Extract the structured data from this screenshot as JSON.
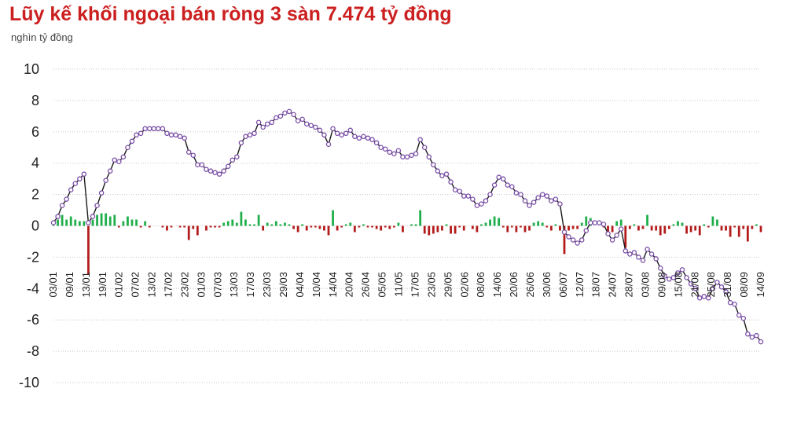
{
  "chart_data": {
    "type": "bar+line",
    "title": "Lũy kế khối ngoại bán ròng 3 sàn 7.474 tỷ đồng",
    "unit": "nghìn tỷ đồng",
    "ylim": [
      -10,
      10
    ],
    "yticks": [
      10,
      8,
      6,
      4,
      2,
      0,
      -2,
      -4,
      -6,
      -8,
      -10
    ],
    "grid": true,
    "legend": "none",
    "x_labels": [
      "03/01",
      "09/01",
      "13/01",
      "19/01",
      "01/02",
      "07/02",
      "13/02",
      "17/02",
      "23/02",
      "01/03",
      "07/03",
      "13/03",
      "17/03",
      "23/03",
      "29/03",
      "04/04",
      "10/04",
      "14/04",
      "20/04",
      "26/04",
      "05/05",
      "11/05",
      "17/05",
      "23/05",
      "29/05",
      "02/06",
      "08/06",
      "14/06",
      "20/06",
      "26/06",
      "30/06",
      "06/07",
      "12/07",
      "18/07",
      "24/07",
      "28/07",
      "03/08",
      "09/08",
      "15/08",
      "21/08",
      "25/08",
      "31/08",
      "08/09",
      "14/09"
    ],
    "series": [
      {
        "kind": "cumulative-line",
        "color": "#1a1a1a",
        "marker_color": "#7b4fa8",
        "values": [
          0.2,
          0.6,
          1.3,
          1.7,
          2.3,
          2.7,
          3.0,
          3.3,
          0.2,
          0.6,
          1.3,
          2.1,
          2.9,
          3.5,
          4.2,
          4.1,
          4.4,
          5.0,
          5.4,
          5.8,
          5.9,
          6.2,
          6.2,
          6.2,
          6.2,
          6.2,
          5.9,
          5.8,
          5.8,
          5.7,
          5.6,
          4.7,
          4.5,
          3.9,
          3.9,
          3.6,
          3.5,
          3.4,
          3.3,
          3.5,
          3.8,
          4.2,
          4.4,
          5.3,
          5.7,
          5.8,
          5.9,
          6.6,
          6.3,
          6.5,
          6.6,
          6.9,
          7.0,
          7.2,
          7.3,
          7.1,
          6.7,
          6.8,
          6.5,
          6.4,
          6.3,
          6.1,
          5.8,
          5.2,
          6.2,
          5.9,
          5.8,
          5.9,
          6.1,
          5.7,
          5.6,
          5.7,
          5.6,
          5.5,
          5.3,
          5.0,
          4.9,
          4.7,
          4.6,
          4.8,
          4.4,
          4.4,
          4.5,
          4.6,
          5.5,
          5.0,
          4.4,
          3.9,
          3.5,
          3.2,
          3.3,
          2.8,
          2.3,
          2.2,
          1.9,
          1.9,
          1.7,
          1.3,
          1.4,
          1.6,
          2.0,
          2.6,
          3.1,
          3.0,
          2.6,
          2.5,
          2.1,
          2.0,
          1.6,
          1.3,
          1.5,
          1.8,
          2.0,
          1.9,
          1.6,
          1.7,
          1.4,
          -0.4,
          -0.7,
          -0.9,
          -1.1,
          -0.9,
          -0.3,
          0.2,
          0.2,
          0.2,
          0.1,
          -0.5,
          -0.9,
          -0.6,
          -0.2,
          -1.6,
          -1.8,
          -1.7,
          -2.0,
          -2.2,
          -1.5,
          -1.8,
          -2.1,
          -2.7,
          -3.2,
          -3.4,
          -3.3,
          -3.0,
          -2.8,
          -3.3,
          -3.7,
          -4.0,
          -4.6,
          -4.5,
          -4.6,
          -4.0,
          -3.6,
          -3.9,
          -4.2,
          -4.9,
          -5.0,
          -5.7,
          -5.9,
          -6.9,
          -7.1,
          -7.0,
          -7.4
        ]
      },
      {
        "kind": "daily-bar",
        "positive_color": "#1fae4a",
        "negative_color": "#b31b1b",
        "values": [
          0.1,
          0.4,
          0.7,
          0.4,
          0.6,
          0.4,
          0.3,
          0.3,
          -3.1,
          0.4,
          0.7,
          0.8,
          0.8,
          0.6,
          0.7,
          -0.1,
          0.3,
          0.6,
          0.4,
          0.4,
          -0.1,
          0.3,
          -0.1,
          0.0,
          0.0,
          -0.1,
          -0.3,
          -0.1,
          0.0,
          -0.1,
          -0.1,
          -0.9,
          -0.2,
          -0.6,
          0.0,
          -0.3,
          -0.1,
          -0.1,
          -0.1,
          0.2,
          0.3,
          0.4,
          0.2,
          0.9,
          0.4,
          0.1,
          0.1,
          0.7,
          -0.3,
          0.2,
          0.1,
          0.3,
          0.1,
          0.2,
          0.1,
          -0.2,
          -0.4,
          0.1,
          -0.3,
          -0.1,
          -0.1,
          -0.2,
          -0.3,
          -0.6,
          1.0,
          -0.3,
          -0.1,
          0.1,
          0.2,
          -0.4,
          -0.1,
          0.1,
          -0.1,
          -0.1,
          -0.2,
          -0.3,
          -0.1,
          -0.2,
          -0.1,
          0.2,
          -0.4,
          0.0,
          0.1,
          0.1,
          1.0,
          -0.5,
          -0.6,
          -0.5,
          -0.4,
          -0.3,
          0.1,
          -0.5,
          -0.5,
          -0.1,
          -0.3,
          0.0,
          -0.2,
          -0.4,
          0.1,
          0.2,
          0.4,
          0.6,
          0.5,
          -0.1,
          -0.4,
          -0.1,
          -0.4,
          -0.1,
          -0.4,
          -0.3,
          0.2,
          0.3,
          0.2,
          -0.1,
          -0.3,
          0.1,
          -0.3,
          -1.8,
          -0.3,
          -0.2,
          -0.2,
          0.2,
          0.6,
          0.5,
          0.0,
          0.0,
          -0.1,
          -0.6,
          -0.4,
          0.3,
          0.4,
          -1.4,
          -0.2,
          0.1,
          -0.3,
          -0.2,
          0.7,
          -0.3,
          -0.3,
          -0.6,
          -0.5,
          -0.2,
          0.1,
          0.3,
          0.2,
          -0.5,
          -0.4,
          -0.3,
          -0.6,
          0.1,
          -0.1,
          0.6,
          0.4,
          -0.3,
          -0.3,
          -0.7,
          -0.1,
          -0.7,
          -0.2,
          -1.0,
          -0.2,
          0.1,
          -0.4
        ]
      }
    ]
  }
}
